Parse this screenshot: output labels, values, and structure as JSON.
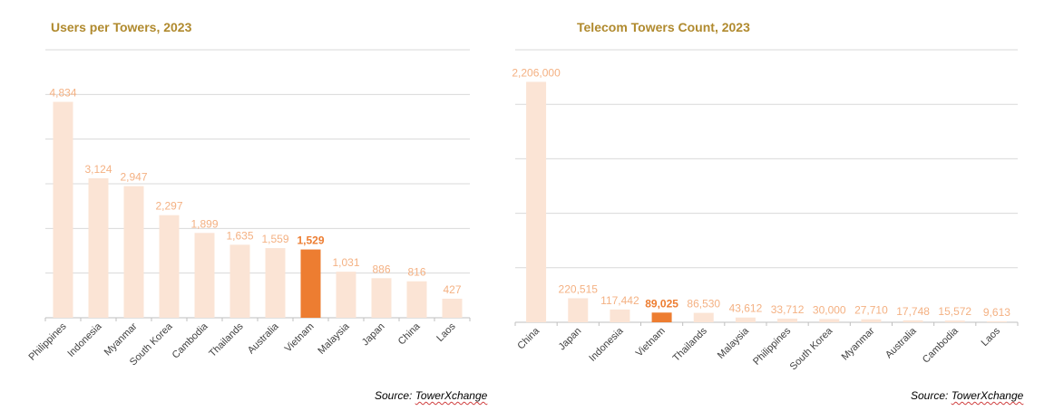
{
  "chart_data": [
    {
      "type": "bar",
      "title": "Users per Towers, 2023",
      "categories": [
        "Philippines",
        "Indonesia",
        "Myanmar",
        "South Korea",
        "Cambodia",
        "Thailands",
        "Australia",
        "Vietnam",
        "Malaysia",
        "Japan",
        "China",
        "Laos"
      ],
      "values": [
        4834,
        3124,
        2947,
        2297,
        1899,
        1635,
        1559,
        1529,
        1031,
        886,
        816,
        427
      ],
      "value_labels": [
        "4,834",
        "3,124",
        "2,947",
        "2,297",
        "1,899",
        "1,635",
        "1,559",
        "1,529",
        "1,031",
        "886",
        "816",
        "427"
      ],
      "highlight": "Vietnam",
      "ylim": [
        0,
        6000
      ],
      "gridlines": [
        0,
        1000,
        2000,
        3000,
        4000,
        5000,
        6000
      ],
      "grid": true,
      "source_prefix": "Source: ",
      "source_name": "TowerXchange"
    },
    {
      "type": "bar",
      "title": "Telecom Towers Count, 2023",
      "categories": [
        "China",
        "Japan",
        "Indonesia",
        "Vietnam",
        "Thailands",
        "Malaysia",
        "Philippines",
        "South Korea",
        "Myanmar",
        "Australia",
        "Cambodia",
        "Laos"
      ],
      "values": [
        2206000,
        220515,
        117442,
        89025,
        86530,
        43612,
        33712,
        30000,
        27710,
        17748,
        15572,
        9613
      ],
      "value_labels": [
        "2,206,000",
        "220,515",
        "117,442",
        "89,025",
        "86,530",
        "43,612",
        "33,712",
        "30,000",
        "27,710",
        "17,748",
        "15,572",
        "9,613"
      ],
      "highlight": "Vietnam",
      "ylim": [
        0,
        2500000
      ],
      "gridlines": [
        0,
        500000,
        1000000,
        1500000,
        2000000,
        2500000
      ],
      "grid": true,
      "source_prefix": "Source: ",
      "source_name": "TowerXchange"
    }
  ],
  "colors": {
    "title": "#B08A2E",
    "bar": "#FBE4D5",
    "bar_highlight": "#ED7D31",
    "label": "#F4B183",
    "label_highlight": "#ED7D31",
    "grid": "#D9D9D9",
    "axis": "#BFBFBF",
    "tick_text": "#404040"
  }
}
